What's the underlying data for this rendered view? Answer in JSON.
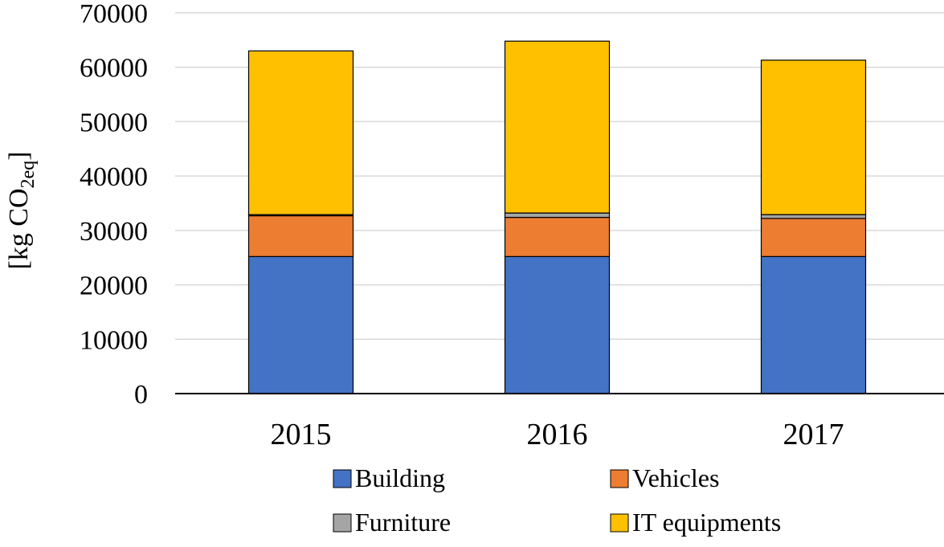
{
  "chart_data": {
    "type": "bar",
    "stacked": true,
    "title": "",
    "xlabel": "",
    "ylabel": {
      "prefix": "[kg CO",
      "subscript": "2eq",
      "suffix": "]"
    },
    "ylim": [
      0,
      70000
    ],
    "yticks": [
      0,
      10000,
      20000,
      30000,
      40000,
      50000,
      60000,
      70000
    ],
    "grid": true,
    "legend_position": "bottom",
    "categories": [
      "2015",
      "2016",
      "2017"
    ],
    "series": [
      {
        "name": "Building",
        "color": "#4472C4",
        "values": [
          25200,
          25200,
          25200
        ]
      },
      {
        "name": "Vehicles",
        "color": "#ED7D31",
        "values": [
          7500,
          7200,
          7000
        ]
      },
      {
        "name": "Furniture",
        "color": "#A5A5A5",
        "values": [
          200,
          800,
          700
        ]
      },
      {
        "name": "IT equipments",
        "color": "#FFC000",
        "values": [
          30100,
          31600,
          28400
        ]
      }
    ]
  }
}
